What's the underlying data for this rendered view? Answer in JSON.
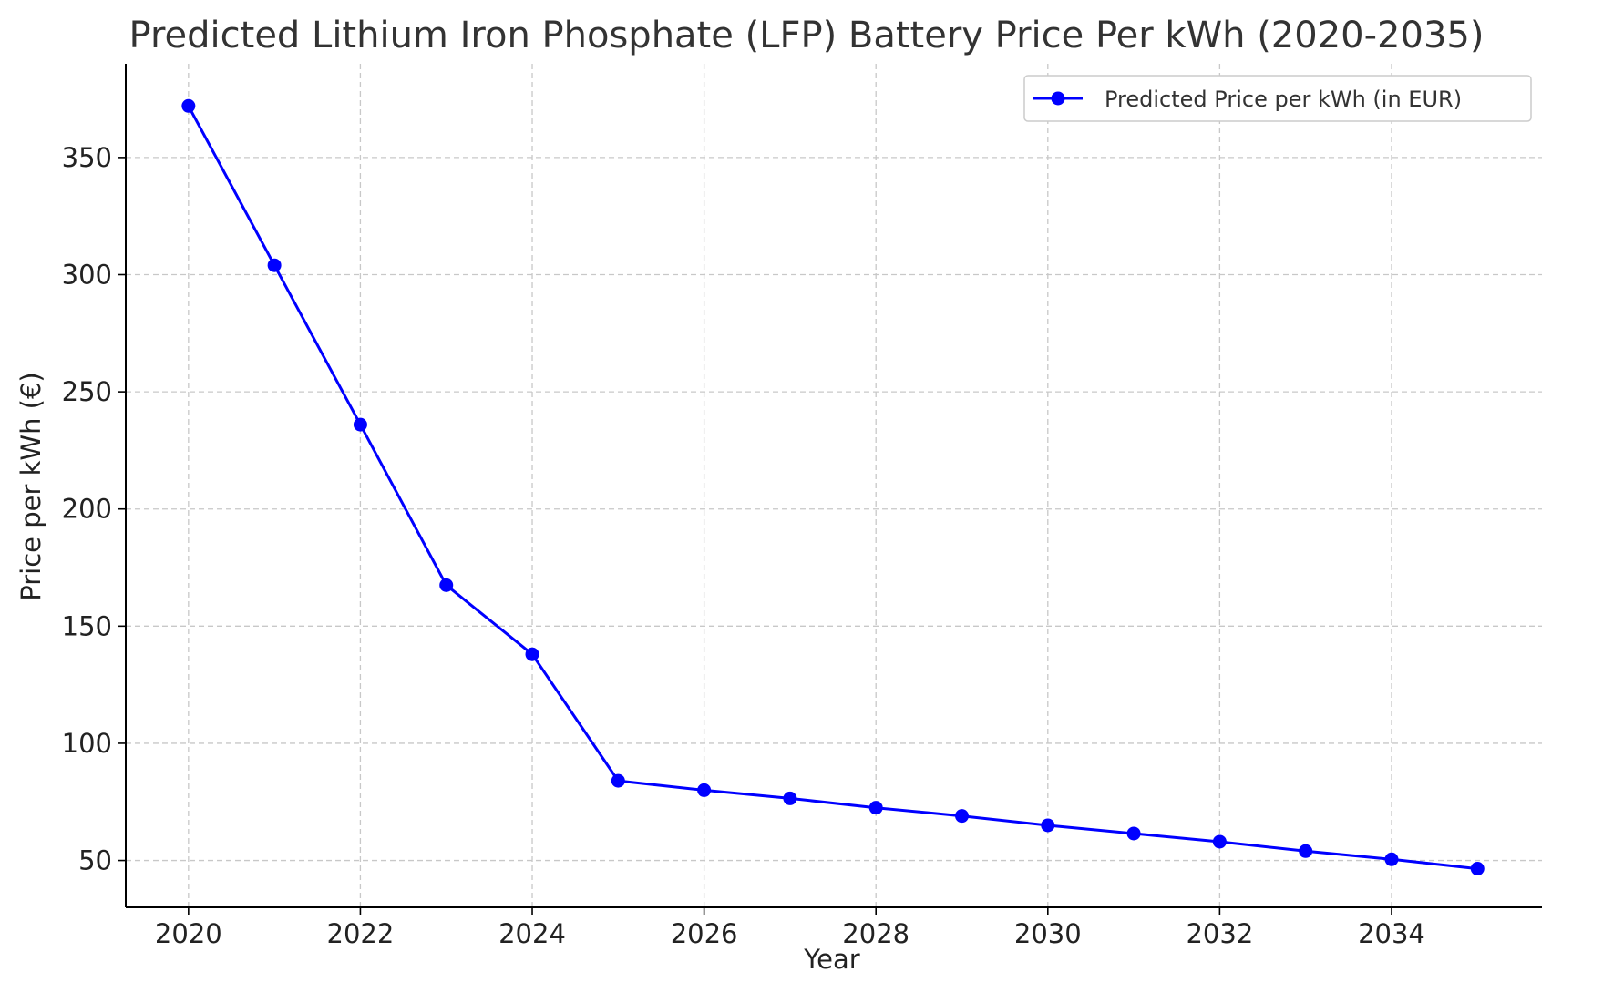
{
  "chart_data": {
    "type": "line",
    "title": "Predicted Lithium Iron Phosphate (LFP) Battery Price Per kWh (2020-2035)",
    "xlabel": "Year",
    "ylabel": "Price per kWh (€)",
    "x": [
      2020,
      2021,
      2022,
      2023,
      2024,
      2025,
      2026,
      2027,
      2028,
      2029,
      2030,
      2031,
      2032,
      2033,
      2034,
      2035
    ],
    "series": [
      {
        "name": "Predicted Price per kWh (in EUR)",
        "color": "#0000ff",
        "marker": "circle",
        "values": [
          372,
          304,
          236,
          167.5,
          138,
          84,
          80,
          76.5,
          72.5,
          69,
          65,
          61.5,
          58,
          54,
          50.5,
          46.5
        ]
      }
    ],
    "xlim": [
      2019.27,
      2035.75
    ],
    "ylim": [
      30,
      390
    ],
    "xticks": [
      2020,
      2022,
      2024,
      2026,
      2028,
      2030,
      2032,
      2034
    ],
    "yticks": [
      50,
      100,
      150,
      200,
      250,
      300,
      350
    ],
    "grid": true,
    "legend_position": "top-right"
  }
}
